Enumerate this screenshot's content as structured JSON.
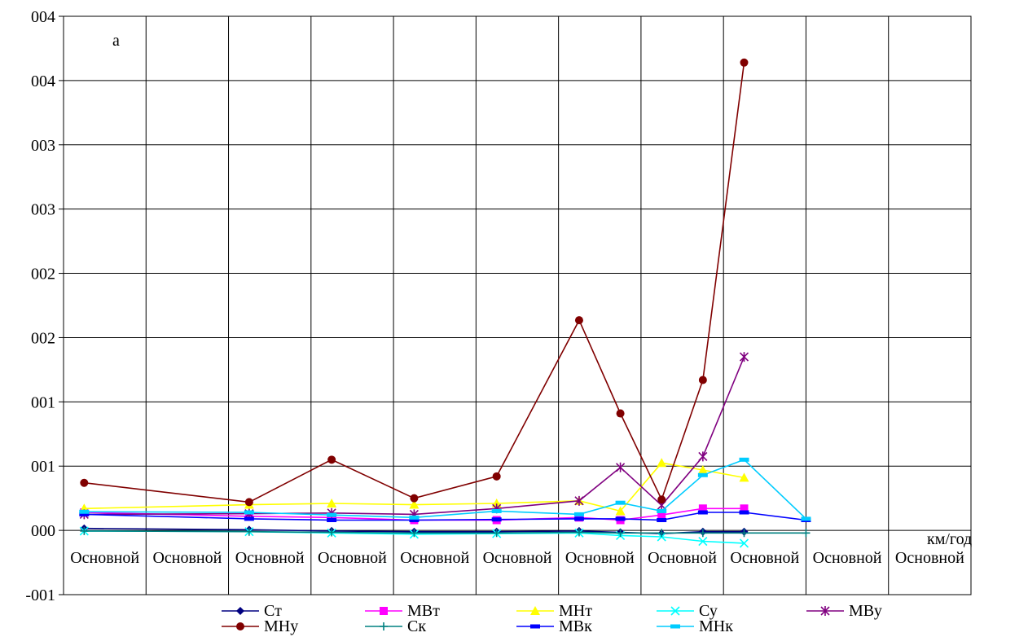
{
  "chart_data": {
    "type": "line",
    "panel_label": "a",
    "unit_label": "км/год",
    "y_tick_labels": [
      "-001",
      "000",
      "001",
      "001",
      "002",
      "002",
      "003",
      "003",
      "004",
      "004"
    ],
    "x_tick_labels": [
      "Основной",
      "Основной",
      "Основной",
      "Основной",
      "Основной",
      "Основной",
      "Основной",
      "Основной",
      "Основной",
      "Основной",
      "Основной"
    ],
    "ylim": [
      -1,
      8
    ],
    "xlim": [
      0,
      11
    ],
    "grid": true,
    "legend_position": "bottom",
    "series": [
      {
        "name": "Ст",
        "color": "#000080",
        "marker": "diamond",
        "x": [
          0.25,
          2.25,
          3.25,
          4.25,
          5.25,
          6.25,
          6.75,
          7.25,
          7.75,
          8.25
        ],
        "y": [
          0.03,
          0.01,
          -0.01,
          -0.02,
          -0.02,
          -0.01,
          -0.03,
          -0.05,
          -0.02,
          -0.02
        ]
      },
      {
        "name": "МВт",
        "color": "#FF00FF",
        "marker": "square",
        "x": [
          0.25,
          2.25,
          3.25,
          4.25,
          5.25,
          6.25,
          6.75,
          7.25,
          7.75,
          8.25
        ],
        "y": [
          0.28,
          0.22,
          0.2,
          0.16,
          0.16,
          0.2,
          0.16,
          0.24,
          0.34,
          0.34
        ]
      },
      {
        "name": "МНт",
        "color": "#FFFF00",
        "marker": "triangle",
        "x": [
          0.25,
          2.25,
          3.25,
          4.25,
          5.25,
          6.25,
          6.75,
          7.25,
          7.75,
          8.25
        ],
        "y": [
          0.34,
          0.4,
          0.42,
          0.4,
          0.42,
          0.46,
          0.3,
          1.05,
          0.94,
          0.82
        ]
      },
      {
        "name": "Су",
        "color": "#00FFFF",
        "marker": "x",
        "x": [
          0.25,
          2.25,
          3.25,
          4.25,
          5.25,
          6.25,
          6.75,
          7.25,
          7.75,
          8.25
        ],
        "y": [
          -0.01,
          -0.02,
          -0.04,
          -0.06,
          -0.05,
          -0.04,
          -0.08,
          -0.1,
          -0.17,
          -0.2
        ]
      },
      {
        "name": "МВу",
        "color": "#800080",
        "marker": "asterisk",
        "x": [
          0.25,
          2.25,
          3.25,
          4.25,
          5.25,
          6.25,
          6.75,
          7.25,
          7.75,
          8.25
        ],
        "y": [
          0.25,
          0.26,
          0.27,
          0.25,
          0.34,
          0.46,
          0.98,
          0.39,
          1.15,
          2.7
        ]
      },
      {
        "name": "МНу",
        "color": "#800000",
        "marker": "circle",
        "x": [
          0.25,
          2.25,
          3.25,
          4.25,
          5.25,
          6.25,
          6.75,
          7.25,
          7.75,
          8.25
        ],
        "y": [
          0.74,
          0.44,
          1.1,
          0.5,
          0.84,
          3.27,
          1.82,
          0.48,
          2.34,
          7.28
        ]
      },
      {
        "name": "Ск",
        "color": "#008080",
        "marker": "plus",
        "x": [
          0.25,
          2.25,
          3.25,
          4.25,
          5.25,
          6.25,
          6.75,
          7.25,
          7.75,
          8.25,
          9
        ],
        "y": [
          -0.01,
          -0.02,
          -0.03,
          -0.04,
          -0.04,
          -0.03,
          -0.04,
          -0.04,
          -0.04,
          -0.04,
          -0.04
        ]
      },
      {
        "name": "МВк",
        "color": "#0000FF",
        "marker": "dash",
        "x": [
          0.25,
          2.25,
          3.25,
          4.25,
          5.25,
          6.25,
          6.75,
          7.25,
          7.75,
          8.25,
          9
        ],
        "y": [
          0.25,
          0.18,
          0.16,
          0.16,
          0.17,
          0.18,
          0.18,
          0.16,
          0.28,
          0.28,
          0.16
        ]
      },
      {
        "name": "МНк",
        "color": "#00CCFF",
        "marker": "dash",
        "x": [
          0.25,
          2.25,
          3.25,
          4.25,
          5.25,
          6.25,
          6.75,
          7.25,
          7.75,
          8.25,
          9
        ],
        "y": [
          0.29,
          0.28,
          0.24,
          0.2,
          0.3,
          0.25,
          0.43,
          0.3,
          0.86,
          1.1,
          0.18
        ]
      }
    ]
  }
}
